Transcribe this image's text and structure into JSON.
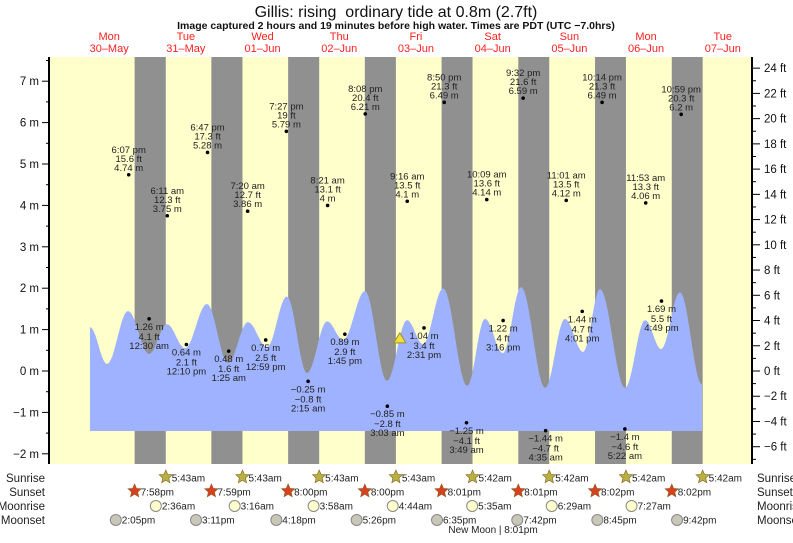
{
  "chart_data": {
    "type": "area",
    "title": "Gillis: rising  ordinary tide at 0.8m (2.7ft)",
    "subtitle": "Image captured 2 hours and 19 minutes before high water. Times are PDT (UTC −7.0hrs)",
    "ylabel_left_unit": "m",
    "ylabel_right_unit": "ft",
    "ylim_m": [
      -2.25,
      7.6
    ],
    "left_ticks": [
      "7 m",
      "6 m",
      "5 m",
      "4 m",
      "3 m",
      "2 m",
      "1 m",
      "0 m",
      "−1 m",
      "−2 m"
    ],
    "right_ticks": [
      "24 ft",
      "22 ft",
      "20 ft",
      "18 ft",
      "16 ft",
      "14 ft",
      "12 ft",
      "10 ft",
      "8 ft",
      "6 ft",
      "4 ft",
      "2 ft",
      "0 ft",
      "−2 ft",
      "−4 ft",
      "−6 ft"
    ],
    "days": [
      {
        "dow": "Mon",
        "date": "30–May"
      },
      {
        "dow": "Tue",
        "date": "31–May"
      },
      {
        "dow": "Wed",
        "date": "01–Jun"
      },
      {
        "dow": "Thu",
        "date": "02–Jun"
      },
      {
        "dow": "Fri",
        "date": "03–Jun"
      },
      {
        "dow": "Sat",
        "date": "04–Jun"
      },
      {
        "dow": "Sun",
        "date": "05–Jun"
      },
      {
        "dow": "Mon",
        "date": "06–Jun"
      },
      {
        "dow": "Tue",
        "date": "07–Jun"
      }
    ],
    "colors": {
      "day": "#ffffcc",
      "night": "#909090",
      "water": "#9fb2ff",
      "date_text": "#ff2020",
      "sunrise": "#b8b040",
      "sunset": "#d84020",
      "moonrise": "#ffffcc",
      "moonset": "#c8c8b8"
    },
    "tide_extremes": [
      {
        "type": "high",
        "date": "05-30",
        "time": "6:07 pm",
        "m": 4.74,
        "ft": 15.6
      },
      {
        "type": "low",
        "date": "05-31",
        "time": "12:30 am",
        "m": 1.26,
        "ft": 4.1
      },
      {
        "type": "high",
        "date": "05-31",
        "time": "6:11 am",
        "m": 3.75,
        "ft": 12.3
      },
      {
        "type": "low",
        "date": "05-31",
        "time": "12:10 pm",
        "m": 0.64,
        "ft": 2.1
      },
      {
        "type": "high",
        "date": "05-31",
        "time": "6:47 pm",
        "m": 5.28,
        "ft": 17.3
      },
      {
        "type": "low",
        "date": "06-01",
        "time": "1:25 am",
        "m": 0.48,
        "ft": 1.6
      },
      {
        "type": "high",
        "date": "06-01",
        "time": "7:20 am",
        "m": 3.86,
        "ft": 12.7
      },
      {
        "type": "low",
        "date": "06-01",
        "time": "12:59 pm",
        "m": 0.75,
        "ft": 2.5
      },
      {
        "type": "high",
        "date": "06-01",
        "time": "7:27 pm",
        "m": 5.79,
        "ft": 19.0
      },
      {
        "type": "low",
        "date": "06-02",
        "time": "2:15 am",
        "m": -0.25,
        "ft": -0.8
      },
      {
        "type": "high",
        "date": "06-02",
        "time": "8:21 am",
        "m": 4.0,
        "ft": 13.1
      },
      {
        "type": "low",
        "date": "06-02",
        "time": "1:45 pm",
        "m": 0.89,
        "ft": 2.9
      },
      {
        "type": "high",
        "date": "06-02",
        "time": "8:08 pm",
        "m": 6.21,
        "ft": 20.4
      },
      {
        "type": "low",
        "date": "06-03",
        "time": "3:03 am",
        "m": -0.85,
        "ft": -2.8
      },
      {
        "type": "high",
        "date": "06-03",
        "time": "9:16 am",
        "m": 4.1,
        "ft": 13.5
      },
      {
        "type": "low",
        "date": "06-03",
        "time": "2:31 pm",
        "m": 1.04,
        "ft": 3.4
      },
      {
        "type": "high",
        "date": "06-03",
        "time": "8:50 pm",
        "m": 6.49,
        "ft": 21.3
      },
      {
        "type": "low",
        "date": "06-04",
        "time": "3:49 am",
        "m": -1.25,
        "ft": -4.1
      },
      {
        "type": "high",
        "date": "06-04",
        "time": "10:09 am",
        "m": 4.14,
        "ft": 13.6
      },
      {
        "type": "low",
        "date": "06-04",
        "time": "3:16 pm",
        "m": 1.22,
        "ft": 4.0
      },
      {
        "type": "high",
        "date": "06-04",
        "time": "9:32 pm",
        "m": 6.59,
        "ft": 21.6
      },
      {
        "type": "low",
        "date": "06-05",
        "time": "4:35 am",
        "m": -1.44,
        "ft": -4.7
      },
      {
        "type": "high",
        "date": "06-05",
        "time": "11:01 am",
        "m": 4.12,
        "ft": 13.5
      },
      {
        "type": "low",
        "date": "06-05",
        "time": "4:01 pm",
        "m": 1.44,
        "ft": 4.7
      },
      {
        "type": "high",
        "date": "06-05",
        "time": "10:14 pm",
        "m": 6.49,
        "ft": 21.3
      },
      {
        "type": "low",
        "date": "06-06",
        "time": "5:22 am",
        "m": -1.4,
        "ft": -4.6
      },
      {
        "type": "high",
        "date": "06-06",
        "time": "11:53 am",
        "m": 4.06,
        "ft": 13.3
      },
      {
        "type": "low",
        "date": "06-06",
        "time": "4:49 pm",
        "m": 1.69,
        "ft": 5.5
      },
      {
        "type": "high",
        "date": "06-06",
        "time": "10:59 pm",
        "m": 6.2,
        "ft": 20.3
      }
    ],
    "tide_curve": [
      {
        "date": "05-30",
        "time": "6:00 am",
        "m": 1.06
      },
      {
        "date": "05-30",
        "time": "11:20 am",
        "m": 0.17
      },
      {
        "date": "05-30",
        "time": "5:54 pm",
        "m": 1.45
      },
      {
        "date": "05-31",
        "time": "12:28 am",
        "m": 0.41
      },
      {
        "date": "05-31",
        "time": "6:06 am",
        "m": 1.13
      },
      {
        "date": "05-31",
        "time": "11:44 am",
        "m": 0.55
      },
      {
        "date": "05-31",
        "time": "6:36 pm",
        "m": 1.62
      },
      {
        "date": "06-01",
        "time": "1:12 am",
        "m": 0.19
      },
      {
        "date": "06-01",
        "time": "7:24 am",
        "m": 1.18
      },
      {
        "date": "06-01",
        "time": "1:24 pm",
        "m": 0.58
      },
      {
        "date": "06-01",
        "time": "7:36 pm",
        "m": 1.8
      },
      {
        "date": "06-02",
        "time": "1:54 am",
        "m": -0.05
      },
      {
        "date": "06-02",
        "time": "8:12 am",
        "m": 1.2
      },
      {
        "date": "06-02",
        "time": "1:12 pm",
        "m": 0.75
      },
      {
        "date": "06-02",
        "time": "8:03 pm",
        "m": 1.93
      },
      {
        "date": "06-03",
        "time": "2:54 am",
        "m": -0.24
      },
      {
        "date": "06-03",
        "time": "9:12 am",
        "m": 1.23
      },
      {
        "date": "06-03",
        "time": "2:12 pm",
        "m": 0.65
      },
      {
        "date": "06-03",
        "time": "8:30 pm",
        "m": 2.0
      },
      {
        "date": "06-04",
        "time": "4:00 am",
        "m": -0.36
      },
      {
        "date": "06-04",
        "time": "9:36 am",
        "m": 1.26
      },
      {
        "date": "06-04",
        "time": "3:12 pm",
        "m": 0.43
      },
      {
        "date": "06-04",
        "time": "8:54 pm",
        "m": 2.03
      },
      {
        "date": "06-05",
        "time": "4:24 am",
        "m": -0.41
      },
      {
        "date": "06-05",
        "time": "10:36 am",
        "m": 1.26
      },
      {
        "date": "06-05",
        "time": "4:18 pm",
        "m": 0.46
      },
      {
        "date": "06-05",
        "time": "9:36 pm",
        "m": 1.98
      },
      {
        "date": "06-06",
        "time": "5:24 am",
        "m": -0.41
      },
      {
        "date": "06-06",
        "time": "11:42 am",
        "m": 1.23
      },
      {
        "date": "06-06",
        "time": "4:42 pm",
        "m": 0.53
      },
      {
        "date": "06-06",
        "time": "10:36 pm",
        "m": 1.9
      },
      {
        "date": "06-07",
        "time": "5:30 am",
        "m": -0.33
      }
    ],
    "current_tide": {
      "state": "rising",
      "m": 0.8,
      "ft": 2.7
    },
    "astro": {
      "labels": {
        "sunrise": "Sunrise",
        "sunset": "Sunset",
        "moonrise": "Moonrise",
        "moonset": "Moonset"
      },
      "sunrise": [
        {
          "date": "05-31",
          "time": "5:43am"
        },
        {
          "date": "06-01",
          "time": "5:43am"
        },
        {
          "date": "06-02",
          "time": "5:43am"
        },
        {
          "date": "06-03",
          "time": "5:43am"
        },
        {
          "date": "06-04",
          "time": "5:42am"
        },
        {
          "date": "06-05",
          "time": "5:42am"
        },
        {
          "date": "06-06",
          "time": "5:42am"
        },
        {
          "date": "06-07",
          "time": "5:42am"
        }
      ],
      "sunset": [
        {
          "date": "05-30",
          "time": "7:58pm"
        },
        {
          "date": "05-31",
          "time": "7:59pm"
        },
        {
          "date": "06-01",
          "time": "8:00pm"
        },
        {
          "date": "06-02",
          "time": "8:00pm"
        },
        {
          "date": "06-03",
          "time": "8:01pm"
        },
        {
          "date": "06-04",
          "time": "8:01pm"
        },
        {
          "date": "06-05",
          "time": "8:02pm"
        },
        {
          "date": "06-06",
          "time": "8:02pm"
        }
      ],
      "moonrise": [
        {
          "date": "05-31",
          "time": "2:36am"
        },
        {
          "date": "06-01",
          "time": "3:16am"
        },
        {
          "date": "06-02",
          "time": "3:58am"
        },
        {
          "date": "06-03",
          "time": "4:44am"
        },
        {
          "date": "06-04",
          "time": "5:35am"
        },
        {
          "date": "06-05",
          "time": "6:29am"
        },
        {
          "date": "06-06",
          "time": "7:27am"
        }
      ],
      "moonset": [
        {
          "date": "05-30",
          "time": "2:05pm"
        },
        {
          "date": "05-31",
          "time": "3:11pm"
        },
        {
          "date": "06-01",
          "time": "4:18pm"
        },
        {
          "date": "06-02",
          "time": "5:26pm"
        },
        {
          "date": "06-03",
          "time": "6:35pm"
        },
        {
          "date": "06-04",
          "time": "7:42pm"
        },
        {
          "date": "06-05",
          "time": "8:45pm"
        },
        {
          "date": "06-06",
          "time": "9:42pm"
        }
      ],
      "new_moon": "New Moon | 8:01pm"
    }
  }
}
